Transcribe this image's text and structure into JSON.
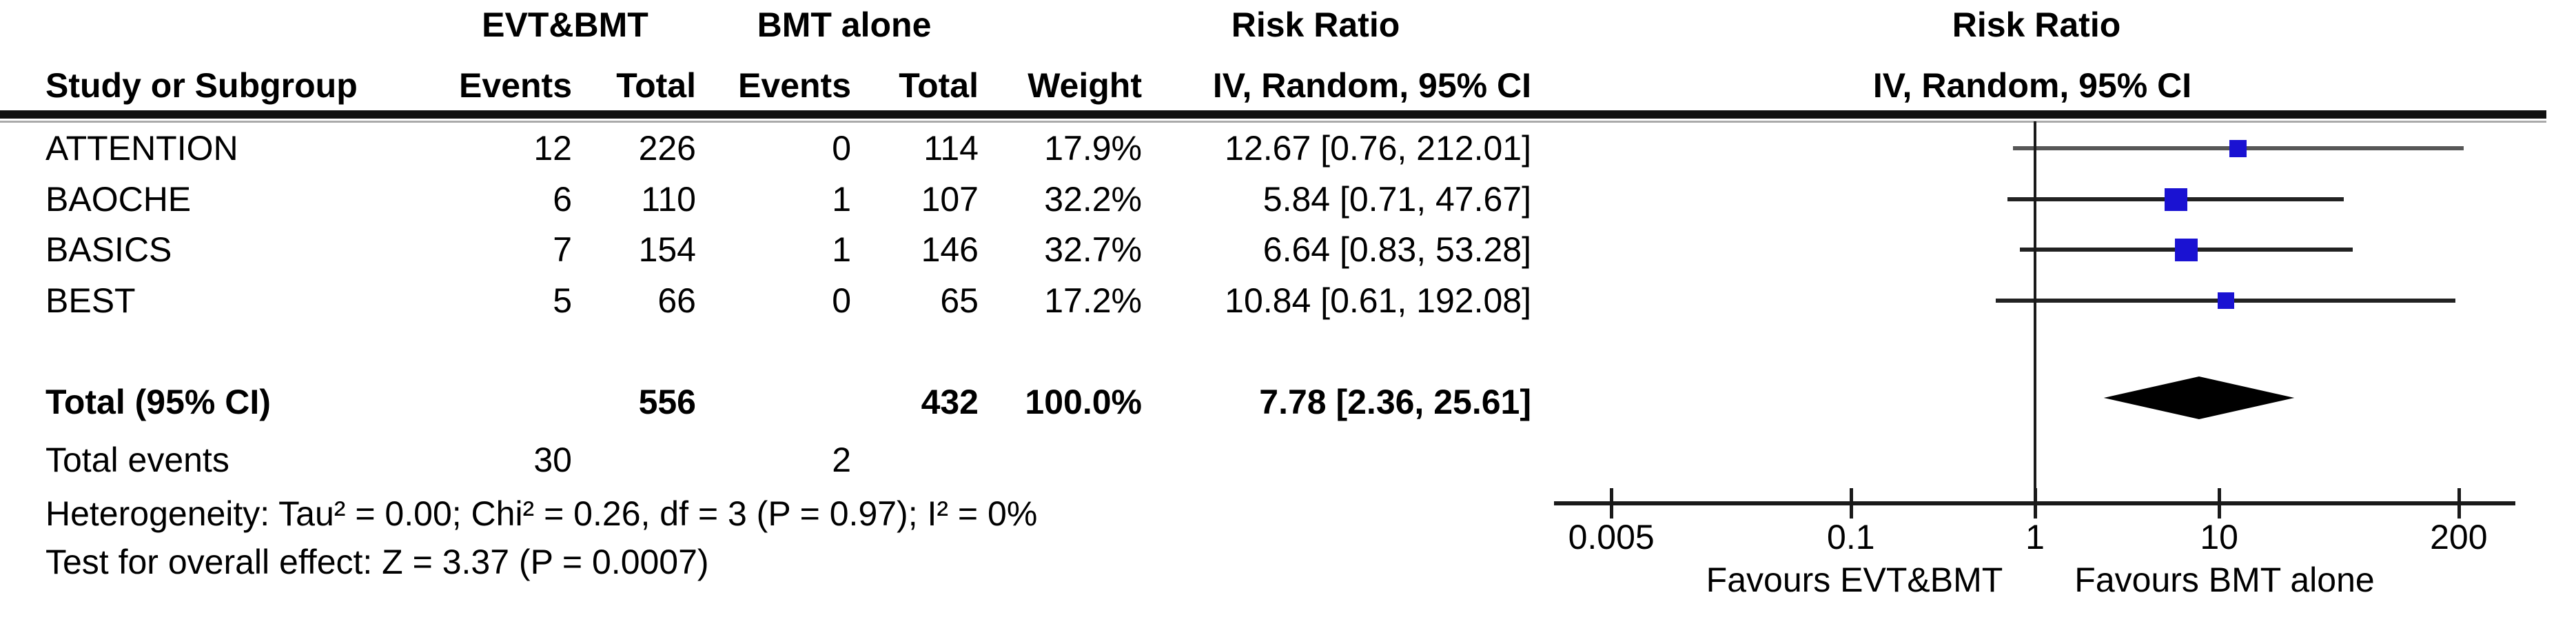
{
  "figure": {
    "group1": "EVT&BMT",
    "group2": "BMT alone",
    "risk_ratio": "Risk Ratio",
    "col_study": "Study or Subgroup",
    "col_events": "Events",
    "col_total": "Total",
    "col_weight": "Weight",
    "col_ci": "IV, Random, 95% CI",
    "total_label": "Total (95% CI)",
    "total_total1": "556",
    "total_total2": "432",
    "total_weight": "100.0%",
    "total_ci": "7.78 [2.36, 25.61]",
    "total_events_label": "Total events",
    "total_events1": "30",
    "total_events2": "2",
    "heterogeneity": "Heterogeneity: Tau² = 0.00; Chi² = 0.26, df = 3 (P = 0.97); I² = 0%",
    "overall_effect": "Test for overall effect: Z = 3.37 (P = 0.0007)",
    "favours_left": "Favours EVT&BMT",
    "favours_right": "Favours BMT alone"
  },
  "colors": {
    "marker_blue": "#1a12d2",
    "diamond_black": "#000000",
    "line_black": "#222222",
    "line_gray": "#575757",
    "axis_black": "#1a1a1a"
  },
  "chart_data": {
    "type": "scatter",
    "subtype": "forest-plot",
    "title": "Risk Ratio",
    "subtitle": "IV, Random, 95% CI",
    "x_scale": "log10",
    "xlim": [
      0.005,
      200
    ],
    "axis_ticks": [
      {
        "value": 0.005,
        "label": "0.005"
      },
      {
        "value": 0.1,
        "label": "0.1"
      },
      {
        "value": 1,
        "label": "1"
      },
      {
        "value": 10,
        "label": "10"
      },
      {
        "value": 200,
        "label": "200"
      }
    ],
    "studies": [
      {
        "name": "ATTENTION",
        "events1": "12",
        "total1": "226",
        "events2": "0",
        "total2": "114",
        "weight": "17.9%",
        "weight_pct": 17.9,
        "ci_text": "12.67 [0.76, 212.01]",
        "rr": 12.67,
        "ci_low": 0.76,
        "ci_high": 212.01
      },
      {
        "name": "BAOCHE",
        "events1": "6",
        "total1": "110",
        "events2": "1",
        "total2": "107",
        "weight": "32.2%",
        "weight_pct": 32.2,
        "ci_text": "5.84 [0.71, 47.67]",
        "rr": 5.84,
        "ci_low": 0.71,
        "ci_high": 47.67
      },
      {
        "name": "BASICS",
        "events1": "7",
        "total1": "154",
        "events2": "1",
        "total2": "146",
        "weight": "32.7%",
        "weight_pct": 32.7,
        "ci_text": "6.64 [0.83, 53.28]",
        "rr": 6.64,
        "ci_low": 0.83,
        "ci_high": 53.28
      },
      {
        "name": "BEST",
        "events1": "5",
        "total1": "66",
        "events2": "0",
        "total2": "65",
        "weight": "17.2%",
        "weight_pct": 17.2,
        "ci_text": "10.84 [0.61, 192.08]",
        "rr": 10.84,
        "ci_low": 0.61,
        "ci_high": 192.08
      }
    ],
    "total": {
      "rr": 7.78,
      "ci_low": 2.36,
      "ci_high": 25.61,
      "total1": 556,
      "total2": 432,
      "weight_pct": 100.0
    },
    "total_events": {
      "group1": 30,
      "group2": 2
    },
    "heterogeneity": {
      "tau2": 0.0,
      "chi2": 0.26,
      "df": 3,
      "p": 0.97,
      "i2_pct": 0
    },
    "overall_effect": {
      "z": 3.37,
      "p": 0.0007
    },
    "footer_left": "Favours EVT&BMT",
    "footer_right": "Favours BMT alone",
    "legend_position": "none",
    "grid": false
  }
}
